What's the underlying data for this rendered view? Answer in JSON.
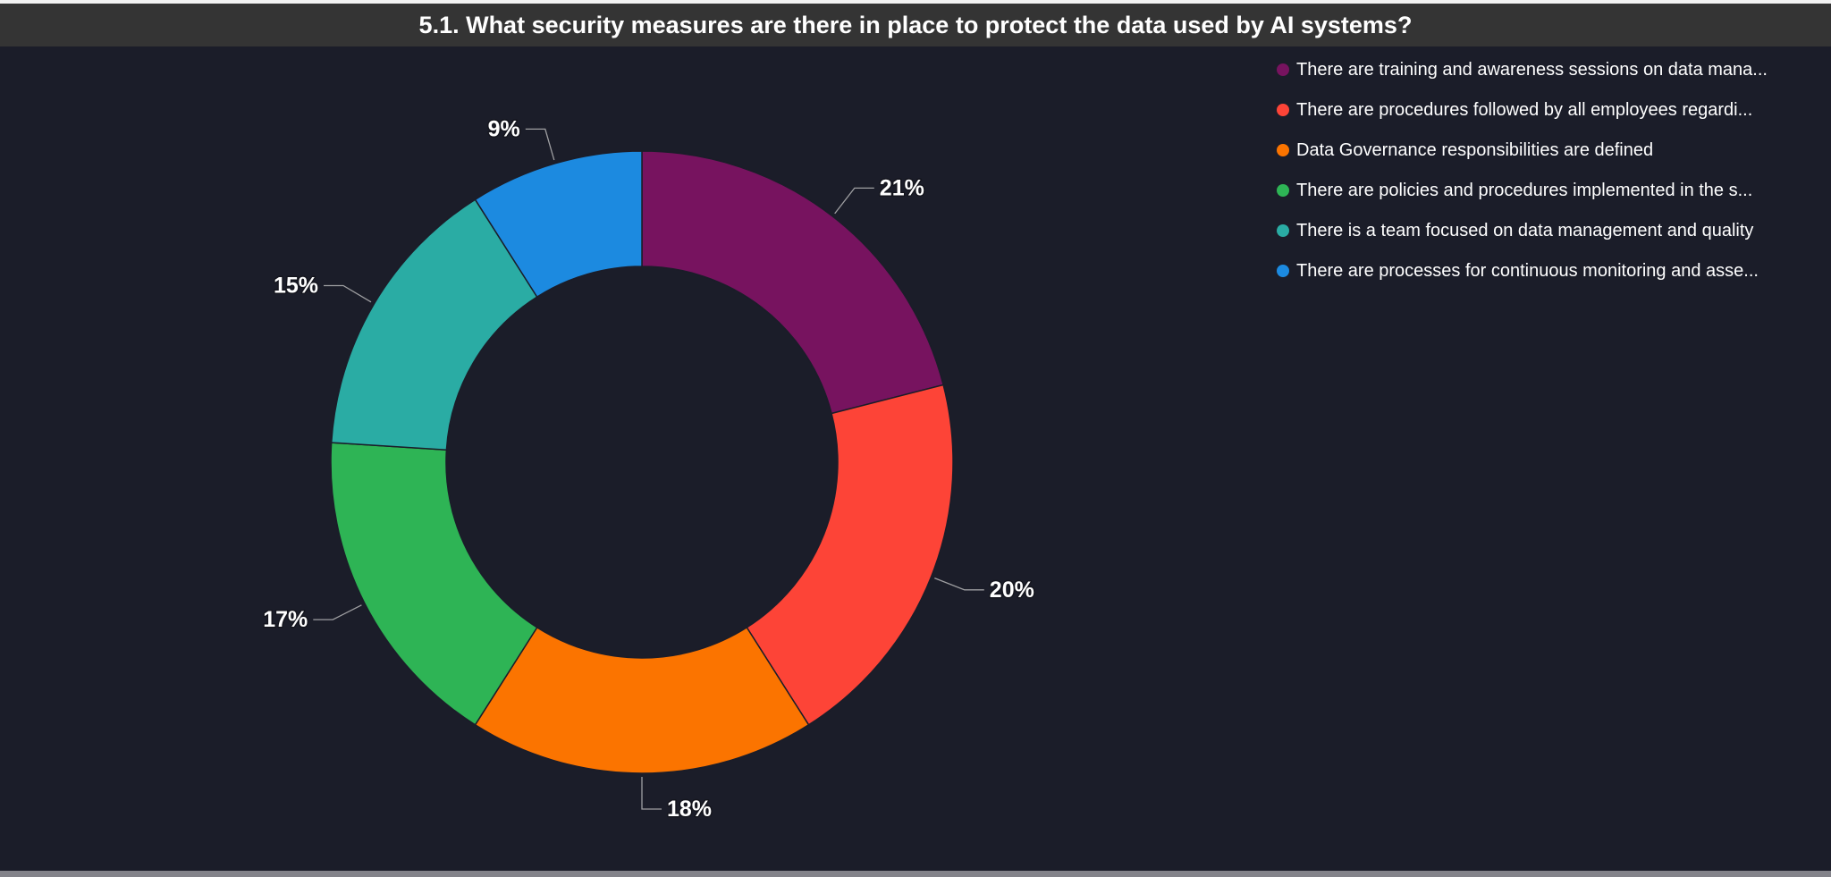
{
  "title": "5.1. What security measures are there in place to protect the data used by AI systems?",
  "colors": {
    "background": "#1B1D29",
    "title_bar": "#343434",
    "title_text": "#FFFFFF",
    "legend_text": "#FFFFFF",
    "data_label_text": "#FFFFFF",
    "leader_line": "#C0C0C0",
    "top_edge": "#F2F2F2",
    "bottom_edge": "#83838A"
  },
  "chart_data": {
    "type": "pie",
    "subtype": "donut",
    "title": "5.1. What security measures are there in place to protect the data used by AI systems?",
    "unit": "percent",
    "start_angle_deg": 0,
    "direction": "clockwise",
    "inner_radius_ratio": 0.63,
    "legend_position": "top-right",
    "slices": [
      {
        "legend_label": "There are training and awareness sessions on data mana...",
        "value": 21,
        "label": "21%",
        "color": "#77135F"
      },
      {
        "legend_label": "There are procedures followed by all employees regardi...",
        "value": 20,
        "label": "20%",
        "color": "#FD4437"
      },
      {
        "legend_label": "Data Governance responsibilities are defined",
        "value": 18,
        "label": "18%",
        "color": "#FB7400"
      },
      {
        "legend_label": "There are policies and procedures implemented in the s...",
        "value": 17,
        "label": "17%",
        "color": "#2EB455"
      },
      {
        "legend_label": "There is a team focused on data management and quality",
        "value": 15,
        "label": "15%",
        "color": "#2AACA4"
      },
      {
        "legend_label": "There are processes for continuous monitoring and asse...",
        "value": 9,
        "label": "9%",
        "color": "#1C8AE0"
      }
    ]
  }
}
